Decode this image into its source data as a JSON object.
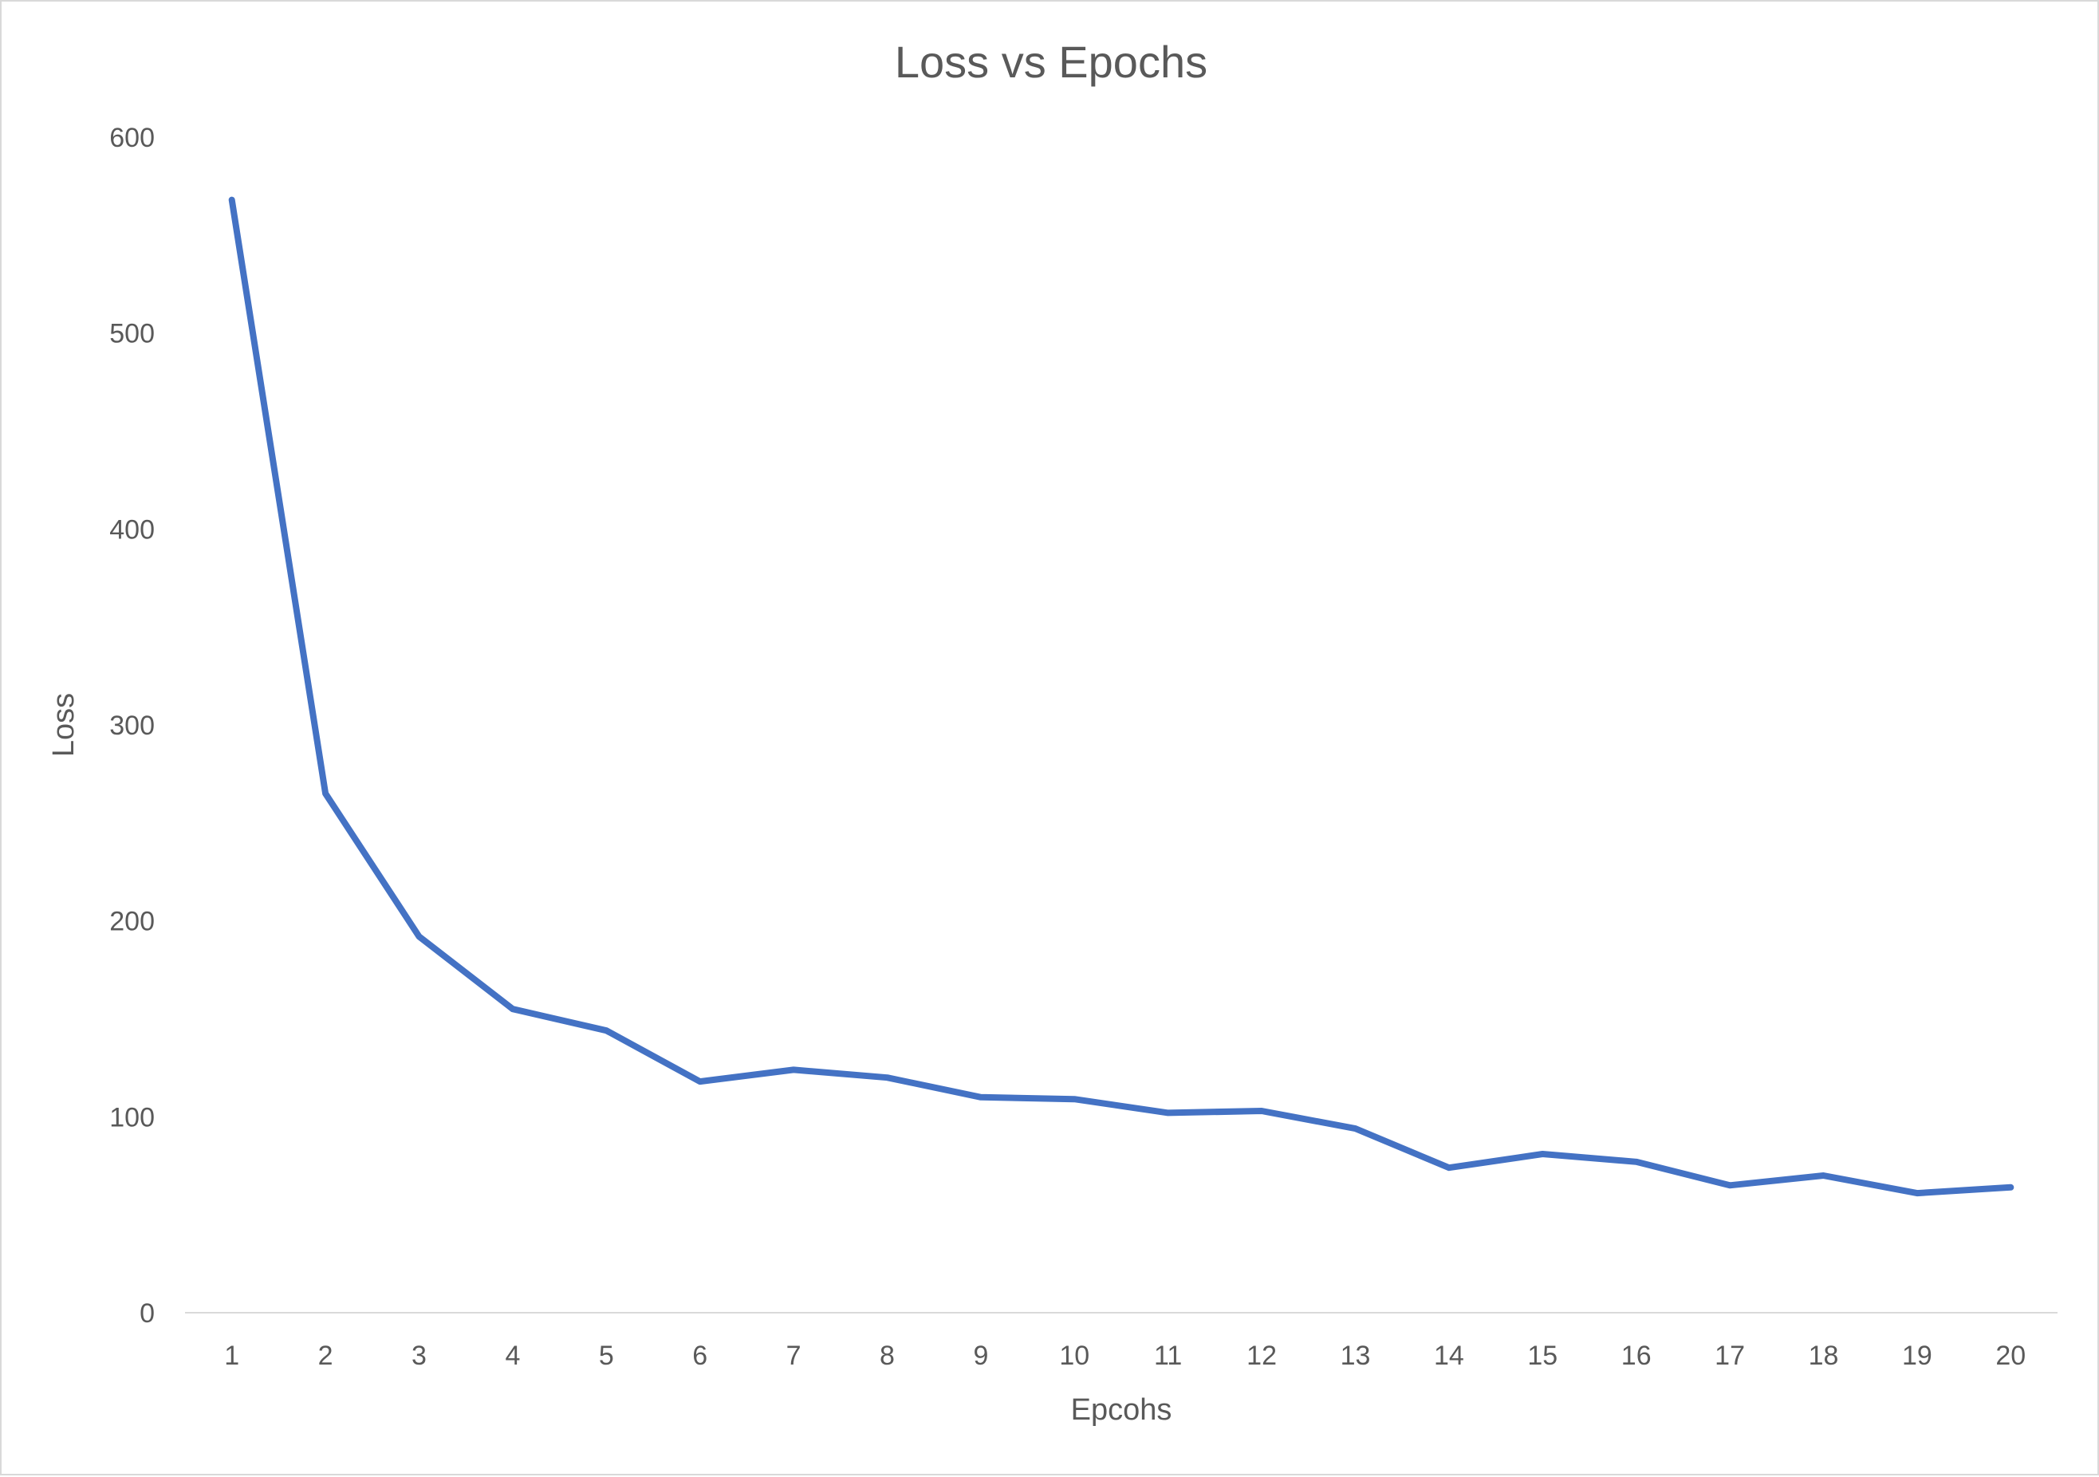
{
  "chart_data": {
    "type": "line",
    "title": "Loss vs Epochs",
    "xlabel": "Epcohs",
    "ylabel": "Loss",
    "categories": [
      "1",
      "2",
      "3",
      "4",
      "5",
      "6",
      "7",
      "8",
      "9",
      "10",
      "11",
      "12",
      "13",
      "14",
      "15",
      "16",
      "17",
      "18",
      "19",
      "20"
    ],
    "series": [
      {
        "values": [
          568,
          265,
          192,
          155,
          144,
          118,
          124,
          120,
          110,
          109,
          102,
          103,
          94,
          74,
          81,
          77,
          65,
          70,
          61,
          64
        ],
        "color": "#4472C4"
      }
    ],
    "ylim": [
      0,
      600
    ],
    "yticks": [
      0,
      100,
      200,
      300,
      400,
      500,
      600
    ],
    "grid": false,
    "legend": "none"
  }
}
